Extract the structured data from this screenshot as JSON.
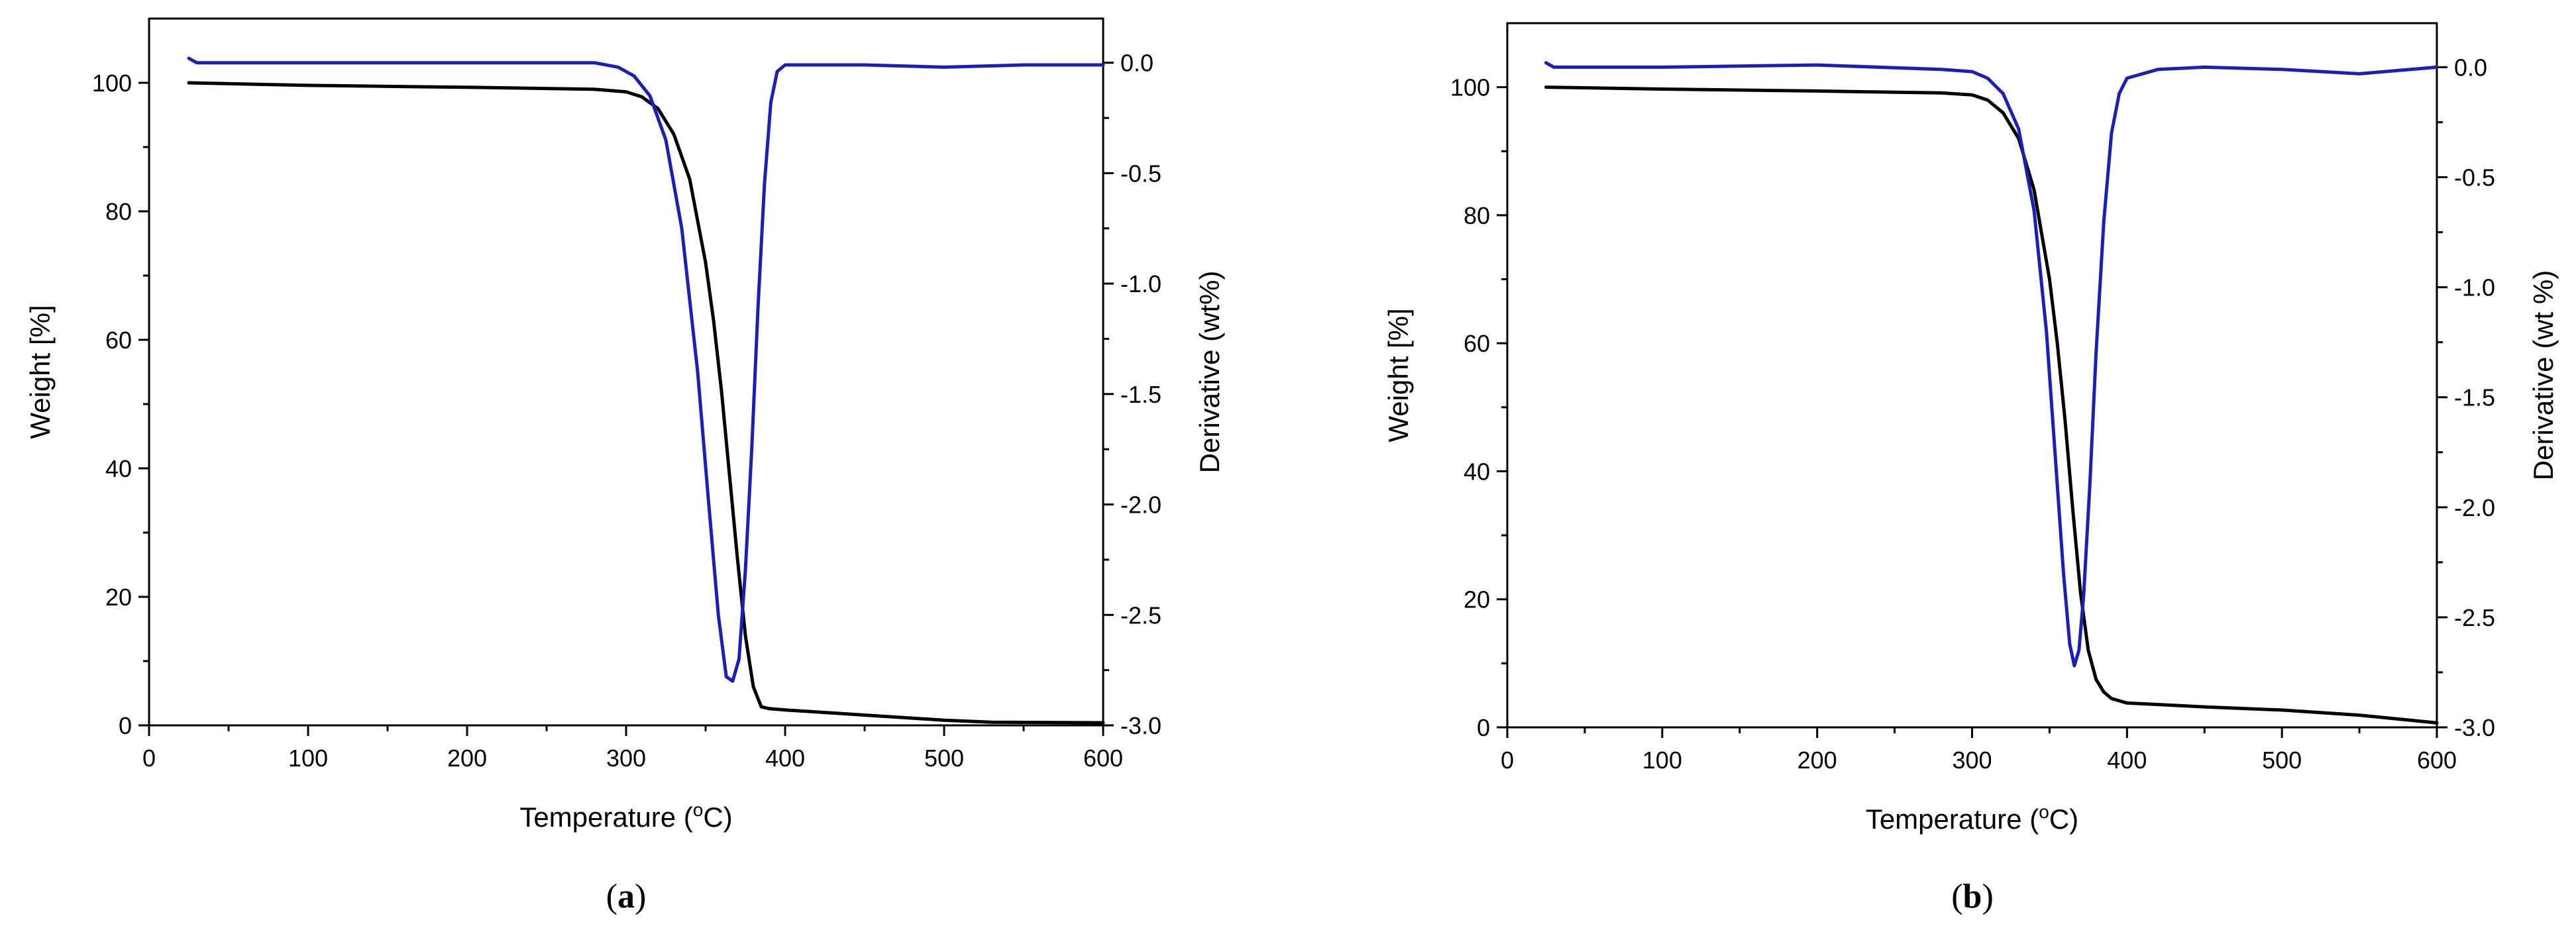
{
  "colors": {
    "weight": "#000000",
    "derivative": "#1a1fb5",
    "axis": "#000000"
  },
  "chart_data": [
    {
      "id": "a",
      "type": "line",
      "caption": "(a)",
      "xlabel_main": "Temperature (",
      "xlabel_degree": "o",
      "xlabel_unit": "C)",
      "ylabel": "Weight [%]",
      "y2label": "Derivative (wt%)",
      "xlim": [
        0,
        600
      ],
      "ylim": [
        0,
        110
      ],
      "y2lim": [
        -3.0,
        0.2
      ],
      "xticks": [
        0,
        100,
        200,
        300,
        400,
        500,
        600
      ],
      "yticks": [
        0,
        20,
        40,
        60,
        80,
        100
      ],
      "y2ticks": [
        -3.0,
        -2.5,
        -2.0,
        -1.5,
        -1.0,
        -0.5,
        0.0
      ],
      "xtick_labels": [
        "0",
        "100",
        "200",
        "300",
        "400",
        "500",
        "600"
      ],
      "ytick_labels": [
        "0",
        "20",
        "40",
        "60",
        "80",
        "100"
      ],
      "y2tick_labels": [
        "-3.0",
        "-2.5",
        "-2.0",
        "-1.5",
        "-1.0",
        "-0.5",
        "0.0"
      ],
      "grid": false,
      "series": [
        {
          "axis": "left",
          "color": "#000000",
          "x": [
            25,
            100,
            200,
            280,
            300,
            310,
            320,
            330,
            340,
            350,
            355,
            360,
            365,
            370,
            375,
            380,
            385,
            390,
            400,
            450,
            500,
            530,
            600
          ],
          "y": [
            100,
            99.6,
            99.3,
            99.0,
            98.6,
            97.8,
            96.0,
            92.0,
            85.0,
            72.0,
            63.0,
            52.0,
            39.0,
            26.0,
            14.0,
            6.0,
            2.9,
            2.6,
            2.4,
            1.6,
            0.8,
            0.5,
            0.4
          ]
        },
        {
          "axis": "right",
          "color": "#1a1fb5",
          "x": [
            25,
            30,
            50,
            100,
            200,
            280,
            295,
            305,
            315,
            325,
            335,
            345,
            352,
            358,
            363,
            367,
            371,
            375,
            379,
            383,
            387,
            391,
            395,
            400,
            450,
            500,
            550,
            600
          ],
          "y": [
            0.02,
            0.0,
            0.0,
            0.0,
            0.0,
            0.0,
            -0.02,
            -0.06,
            -0.15,
            -0.35,
            -0.75,
            -1.4,
            -2.0,
            -2.5,
            -2.78,
            -2.8,
            -2.7,
            -2.3,
            -1.75,
            -1.1,
            -0.55,
            -0.18,
            -0.04,
            -0.01,
            -0.01,
            -0.02,
            -0.01,
            -0.01
          ]
        }
      ]
    },
    {
      "id": "b",
      "type": "line",
      "caption": "(b)",
      "xlabel_main": "Temperature (",
      "xlabel_degree": "o",
      "xlabel_unit": "C)",
      "ylabel": "Weight [%]",
      "y2label": "Derivative (wt %)",
      "xlim": [
        0,
        600
      ],
      "ylim": [
        0,
        110
      ],
      "y2lim": [
        -3.0,
        0.2
      ],
      "xticks": [
        0,
        100,
        200,
        300,
        400,
        500,
        600
      ],
      "yticks": [
        0,
        20,
        40,
        60,
        80,
        100
      ],
      "y2ticks": [
        -3.0,
        -2.5,
        -2.0,
        -1.5,
        -1.0,
        -0.5,
        0.0
      ],
      "xtick_labels": [
        "0",
        "100",
        "200",
        "300",
        "400",
        "500",
        "600"
      ],
      "ytick_labels": [
        "0",
        "20",
        "40",
        "60",
        "80",
        "100"
      ],
      "y2tick_labels": [
        "-3.0",
        "-2.5",
        "-2.0",
        "-1.5",
        "-1.0",
        "-0.5",
        "0.0"
      ],
      "grid": false,
      "series": [
        {
          "axis": "left",
          "color": "#000000",
          "x": [
            25,
            100,
            200,
            280,
            300,
            310,
            320,
            330,
            340,
            350,
            355,
            360,
            365,
            370,
            375,
            380,
            385,
            390,
            400,
            450,
            500,
            550,
            600
          ],
          "y": [
            100,
            99.7,
            99.4,
            99.1,
            98.8,
            98.0,
            96.0,
            92.0,
            84.0,
            70.0,
            60.0,
            48.0,
            34.0,
            21.0,
            12.0,
            7.5,
            5.5,
            4.5,
            3.8,
            3.2,
            2.7,
            1.9,
            0.7
          ]
        },
        {
          "axis": "right",
          "color": "#1a1fb5",
          "x": [
            25,
            30,
            50,
            100,
            200,
            280,
            300,
            310,
            320,
            330,
            340,
            348,
            354,
            359,
            363,
            366,
            369,
            372,
            376,
            380,
            385,
            390,
            395,
            400,
            420,
            450,
            500,
            550,
            600
          ],
          "y": [
            0.02,
            0.0,
            0.0,
            0.0,
            0.01,
            -0.01,
            -0.02,
            -0.05,
            -0.12,
            -0.28,
            -0.65,
            -1.2,
            -1.8,
            -2.3,
            -2.62,
            -2.72,
            -2.65,
            -2.4,
            -1.9,
            -1.3,
            -0.7,
            -0.3,
            -0.12,
            -0.05,
            -0.01,
            0.0,
            -0.01,
            -0.03,
            0.0
          ]
        }
      ]
    }
  ]
}
